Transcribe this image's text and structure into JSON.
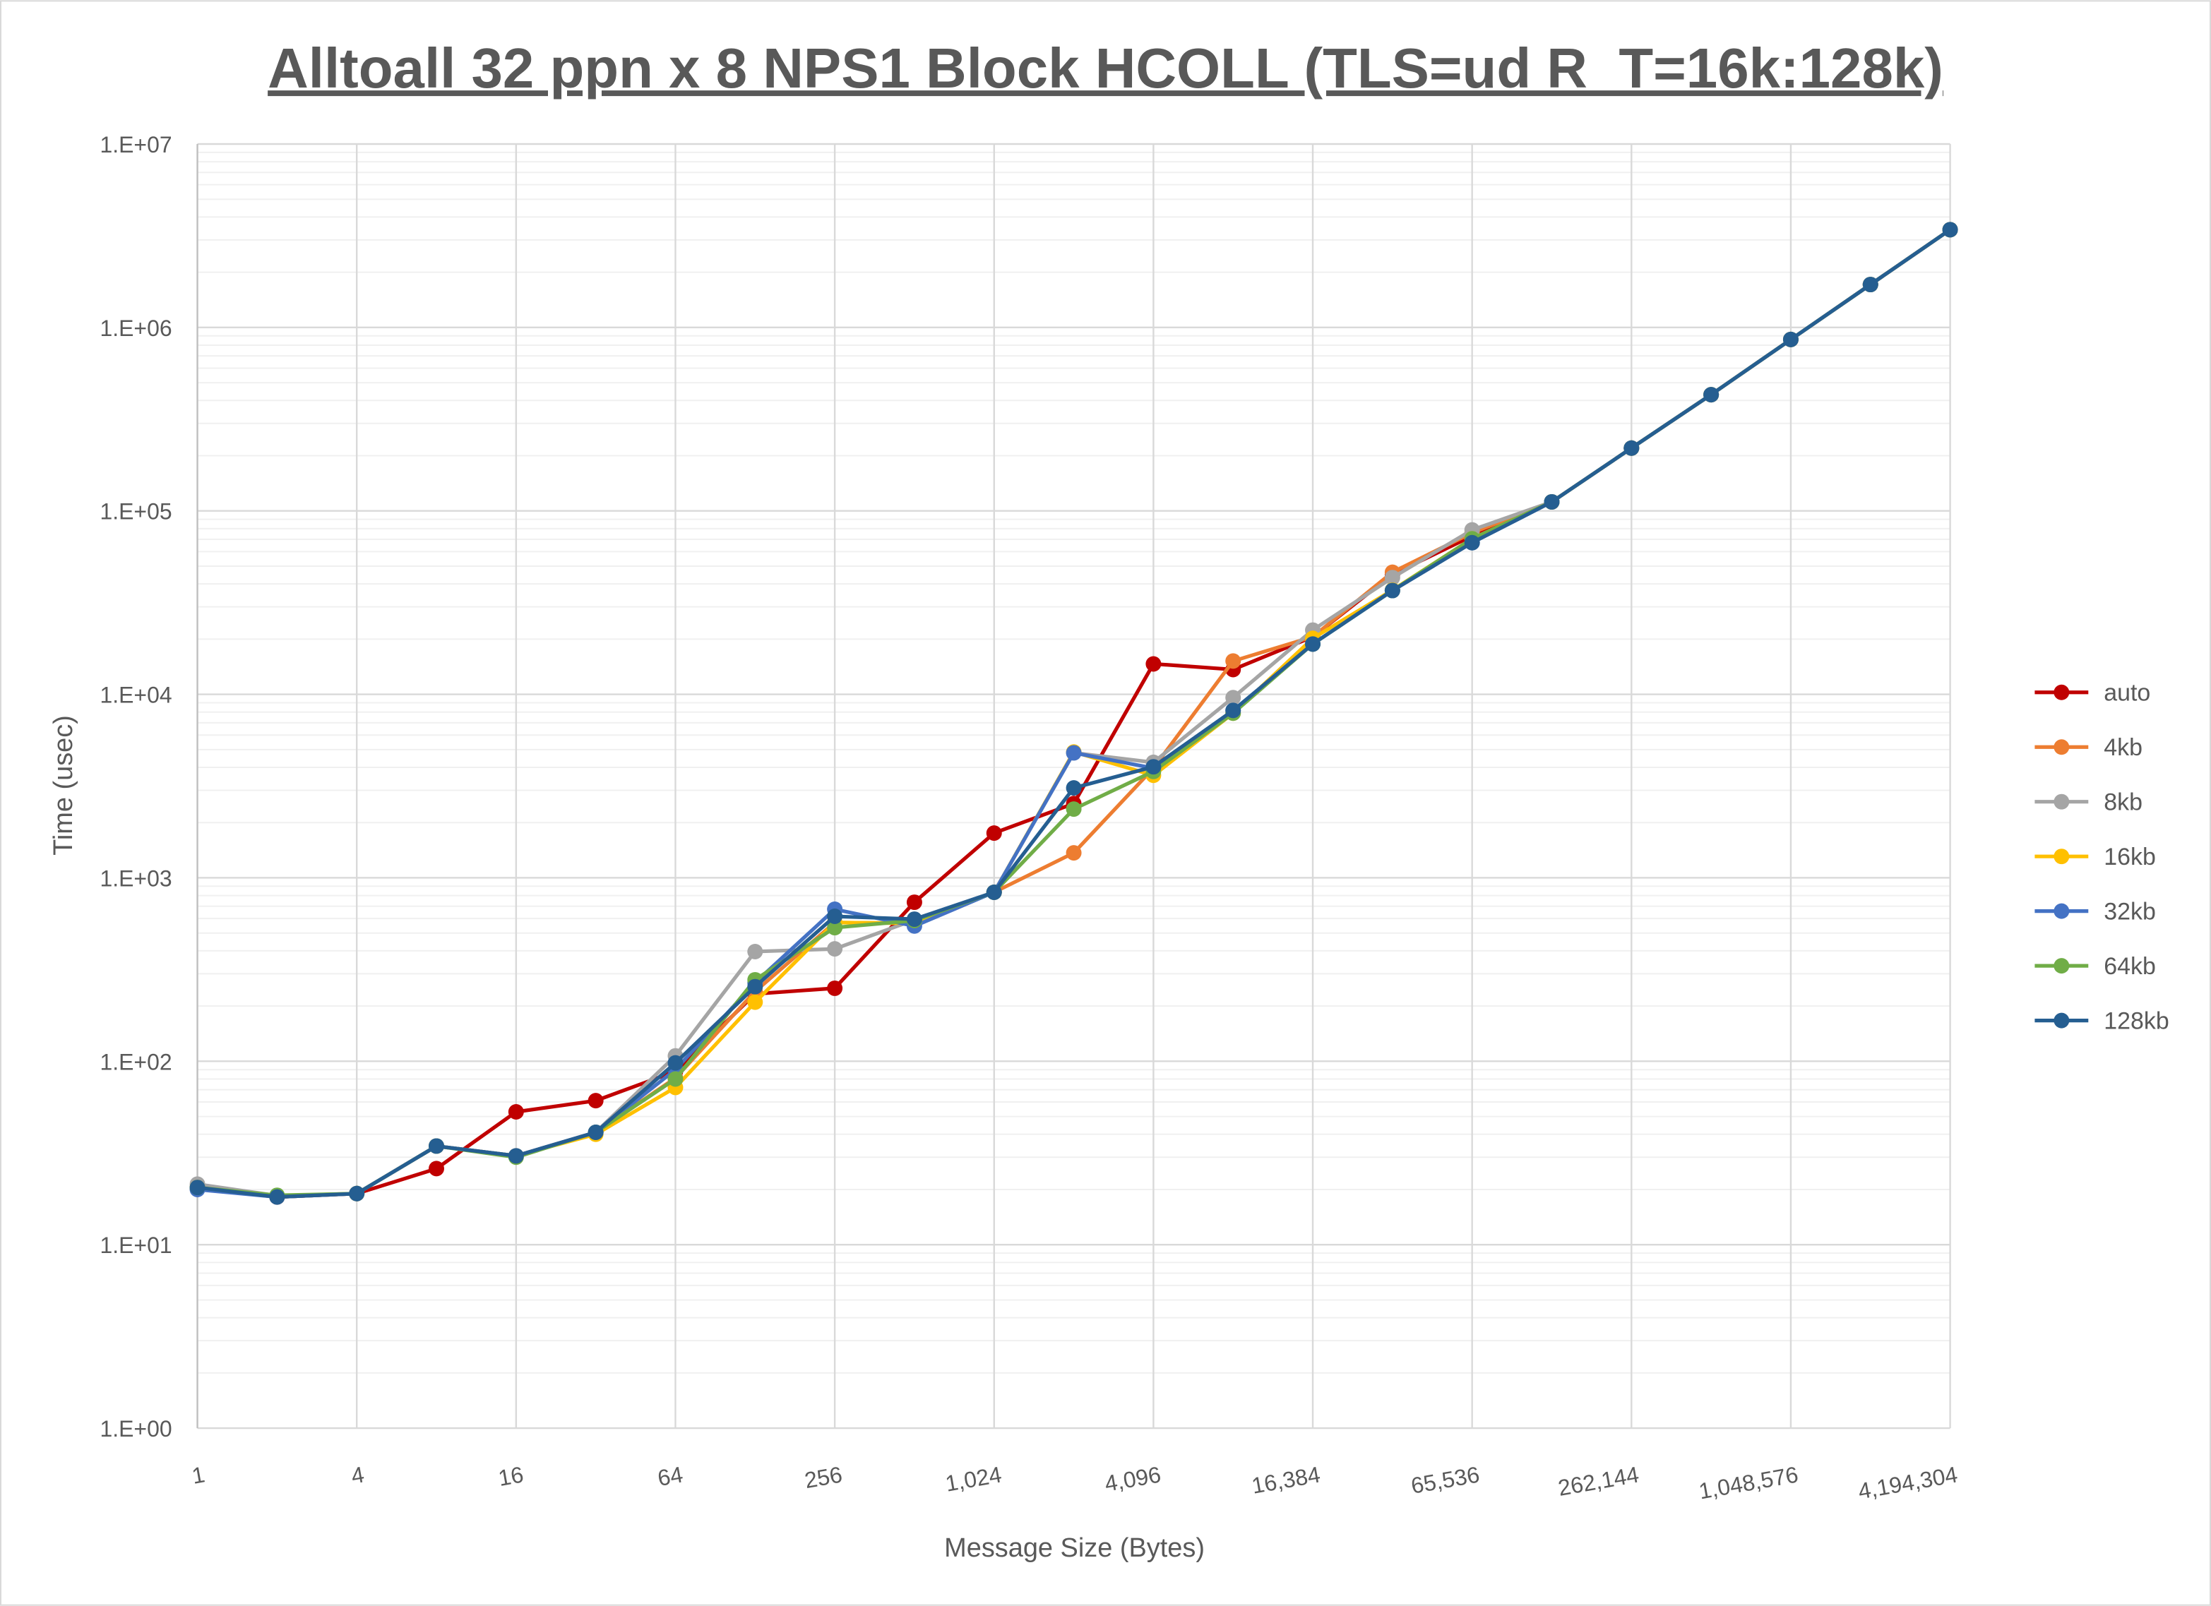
{
  "chart_data": {
    "type": "line",
    "title": "Alltoall 32 ppn x 8 NPS1 Block HCOLL (TLS=ud R_T=16k:128k)",
    "xlabel": "Message Size (Bytes)",
    "ylabel": "Time (usec)",
    "x_scale": "log2",
    "y_scale": "log10",
    "ylim": [
      1,
      10000000
    ],
    "grid": true,
    "legend_position": "right",
    "x": [
      1,
      2,
      4,
      8,
      16,
      32,
      64,
      128,
      256,
      512,
      1024,
      2048,
      4096,
      8192,
      16384,
      32768,
      65536,
      131072,
      262144,
      524288,
      1048576,
      2097152,
      4194304
    ],
    "x_tick_labels": [
      "1",
      "4",
      "16",
      "64",
      "256",
      "1,024",
      "4,096",
      "16,384",
      "65,536",
      "262,144",
      "1,048,576",
      "4,194,304"
    ],
    "y_tick_labels": [
      "1.E+00",
      "1.E+01",
      "1.E+02",
      "1.E+03",
      "1.E+04",
      "1.E+05",
      "1.E+06",
      "1.E+07"
    ],
    "series": [
      {
        "name": "auto",
        "color": "#C00000",
        "values": [
          20.3,
          18.2,
          19,
          26,
          53,
          61,
          88,
          233,
          250,
          736,
          1753,
          2540,
          14650,
          13650,
          20600,
          45000,
          73000,
          112000,
          220000,
          430000,
          860000,
          1714000,
          3410000
        ]
      },
      {
        "name": "4kb",
        "color": "#ED7D31",
        "values": [
          20.5,
          18.2,
          19,
          34.5,
          30.5,
          41,
          81,
          240,
          570,
          565,
          834,
          1368,
          3960,
          15200,
          20600,
          46300,
          76000,
          112000,
          220000,
          430000,
          860000,
          1714000,
          3410000
        ]
      },
      {
        "name": "8kb",
        "color": "#A5A5A5",
        "values": [
          21.4,
          18.5,
          19,
          34.5,
          30.5,
          41,
          107,
          396,
          410,
          590,
          834,
          4800,
          4260,
          9600,
          22400,
          43300,
          78800,
          112000,
          220000,
          430000,
          860000,
          1714000,
          3410000
        ]
      },
      {
        "name": "16kb",
        "color": "#FFC000",
        "values": [
          20.5,
          18.5,
          19,
          34.5,
          30.5,
          40,
          72,
          210,
          570,
          565,
          834,
          4850,
          3620,
          7900,
          20200,
          37000,
          70500,
          112000,
          220000,
          430000,
          860000,
          1714000,
          3410000
        ]
      },
      {
        "name": "32kb",
        "color": "#4472C4",
        "values": [
          20,
          18.2,
          19,
          34.5,
          30.5,
          41,
          90,
          268,
          674,
          546,
          834,
          4800,
          3960,
          8170,
          18800,
          36800,
          67100,
          112000,
          220000,
          430000,
          860000,
          1714000,
          3410000
        ]
      },
      {
        "name": "64kb",
        "color": "#70AD47",
        "values": [
          20.5,
          18.6,
          19,
          34.5,
          30,
          41,
          80,
          278,
          535,
          585,
          834,
          2370,
          3800,
          7900,
          18800,
          36800,
          70500,
          112000,
          220000,
          430000,
          860000,
          1714000,
          3410000
        ]
      },
      {
        "name": "128kb",
        "color": "#255E91",
        "values": [
          20.5,
          18.2,
          19,
          34.5,
          30.5,
          41,
          98,
          255,
          617,
          595,
          834,
          3090,
          4030,
          8170,
          18800,
          36800,
          67100,
          112000,
          220000,
          430000,
          860000,
          1714000,
          3410000
        ]
      }
    ]
  }
}
